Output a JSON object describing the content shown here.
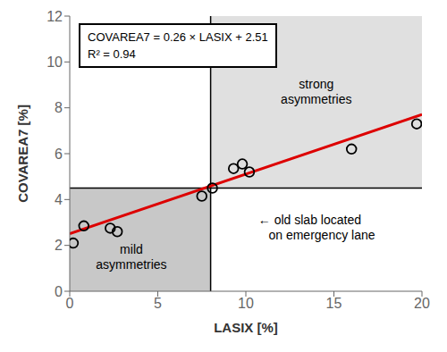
{
  "chart_data": {
    "type": "scatter",
    "xlabel": "LASIX [%]",
    "ylabel": "COVAREA7 [%]",
    "xlim": [
      0,
      20
    ],
    "ylim": [
      0,
      12
    ],
    "xticks": [
      0,
      5,
      10,
      15,
      20
    ],
    "yticks": [
      0,
      2,
      4,
      6,
      8,
      10,
      12
    ],
    "grid": false,
    "series": [
      {
        "type": "scatter",
        "marker": "circle",
        "color": "#000000",
        "x": [
          0.2,
          0.8,
          2.3,
          2.7,
          7.5,
          8.1,
          9.3,
          9.8,
          10.2,
          16.0,
          19.7
        ],
        "values": [
          2.1,
          2.85,
          2.75,
          2.6,
          4.15,
          4.5,
          5.35,
          5.55,
          5.2,
          6.2,
          7.3
        ]
      },
      {
        "type": "line",
        "line_style": "solid",
        "color": "#dd0000",
        "x": [
          0,
          20
        ],
        "values": [
          2.51,
          7.71
        ]
      }
    ],
    "thresholds": {
      "x": 8,
      "y": 4.5
    },
    "threshold_color": "#000000",
    "regions": [
      {
        "x": [
          0,
          8
        ],
        "y": [
          0,
          4.5
        ],
        "color": "#c8c8c8",
        "label": "mild\nasymmetries",
        "label_x": 3.5,
        "label_y": 1.5
      },
      {
        "x": [
          8,
          20
        ],
        "y": [
          4.5,
          12
        ],
        "color": "#e0e0e0",
        "label": "strong\nasymmetries",
        "label_x": 14.0,
        "label_y": 8.7
      }
    ],
    "annotations": [
      {
        "text": "← old slab located\n   on emergency lane",
        "x": 10.7,
        "y": 3.3
      }
    ],
    "text_box": [
      "COVAREA7 = 0.26 × LASIX + 2.51",
      "R² = 0.94"
    ]
  }
}
